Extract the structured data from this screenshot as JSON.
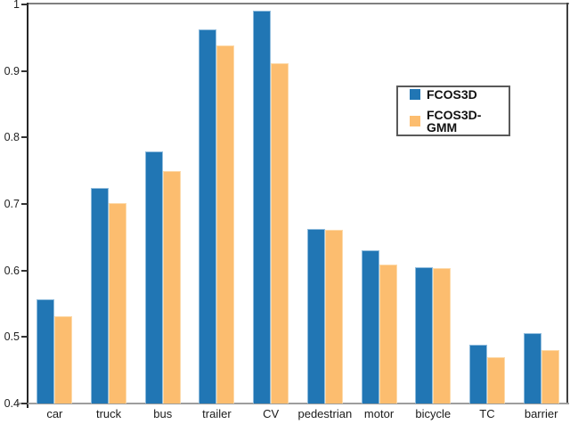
{
  "chart_data": {
    "type": "bar",
    "title": "",
    "xlabel": "",
    "ylabel": "",
    "categories": [
      "car",
      "truck",
      "bus",
      "trailer",
      "CV",
      "pedestrian",
      "motor",
      "bicycle",
      "TC",
      "barrier"
    ],
    "series": [
      {
        "name": "FCOS3D",
        "color": "#2176B4",
        "edge_color": "#8FBCDD",
        "values": [
          0.557,
          0.724,
          0.779,
          0.962,
          0.991,
          0.662,
          0.63,
          0.605,
          0.488,
          0.506
        ]
      },
      {
        "name": "FCOS3D-GMM",
        "color": "#FCBD6F",
        "edge_color": "#FDD9A8",
        "values": [
          0.531,
          0.702,
          0.749,
          0.938,
          0.912,
          0.661,
          0.609,
          0.603,
          0.47,
          0.481
        ]
      }
    ],
    "ylim": [
      0.4,
      1.0
    ],
    "yticks": {
      "values": [
        0.4,
        0.5,
        0.6,
        0.7,
        0.8,
        0.9,
        1.0
      ],
      "labels": [
        "0.4",
        "0.5",
        "0.6",
        "0.7",
        "0.8",
        "0.9",
        "1"
      ]
    },
    "grid": false,
    "legend": {
      "position": "upper-right-inside",
      "border_color": "#595959",
      "entries": [
        "FCOS3D",
        "FCOS3D-GMM"
      ]
    }
  }
}
